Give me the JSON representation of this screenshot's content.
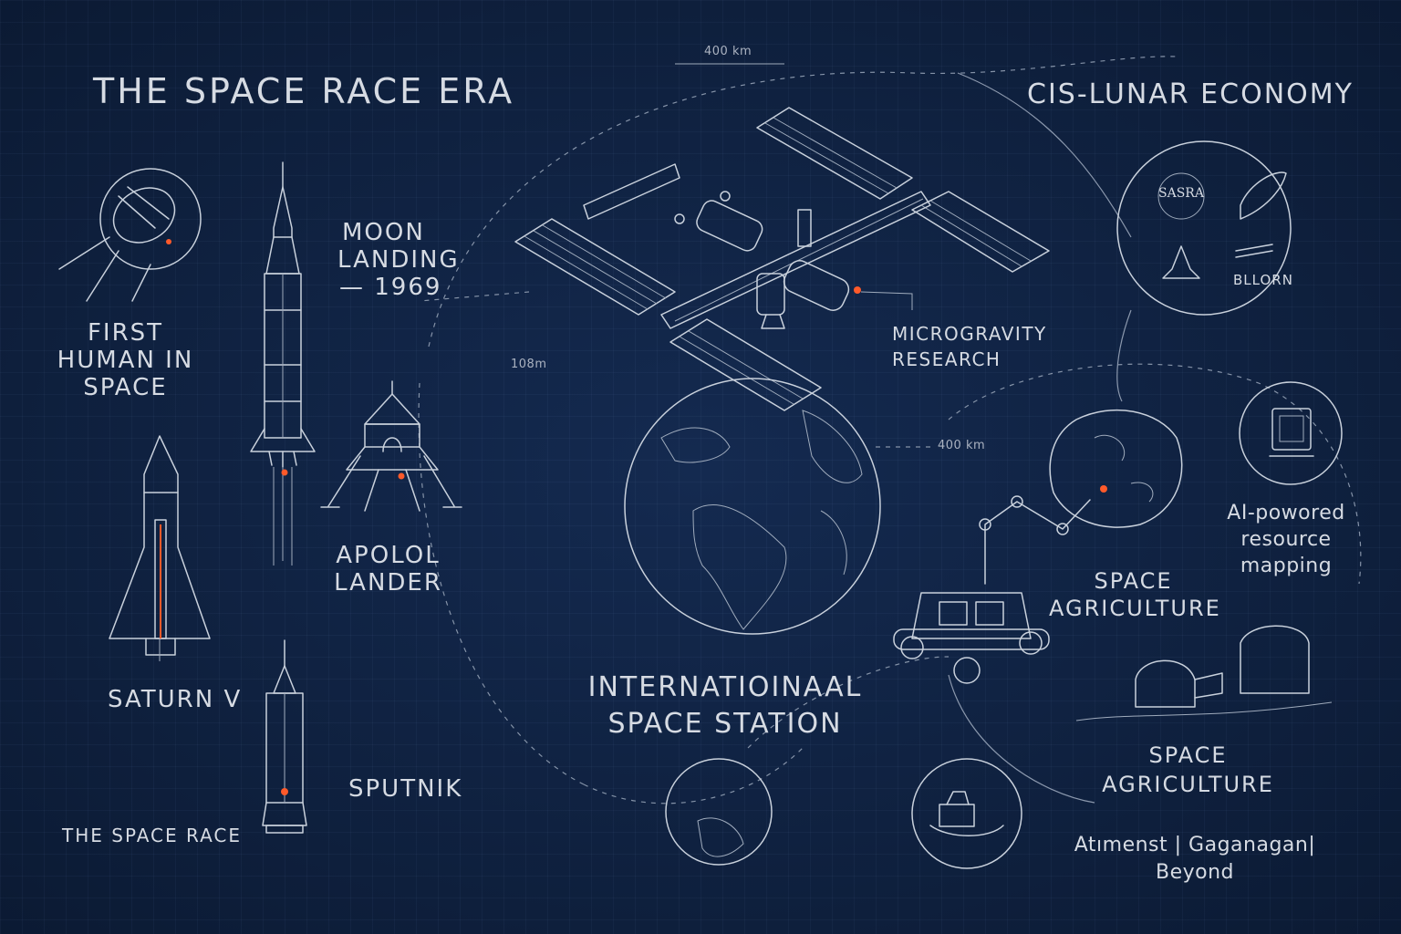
{
  "left": {
    "title": "THE SPACE RACE ERA",
    "first_human": [
      "FIRST",
      "HUMAN IN",
      "SPACE"
    ],
    "moon_landing": [
      "MOON",
      "LANDING",
      "— 1969"
    ],
    "apollo": [
      "APOLOL",
      "LANDER"
    ],
    "saturn": "SATURN V",
    "sputnik": "SPUTNIK",
    "footer": "THE SPACE RACE"
  },
  "center": {
    "dim_top": "400 km",
    "dim_left": "108m",
    "iss": [
      "INTERNATIOINAAL",
      "SPACE STATION"
    ],
    "micro": [
      "MICROGRAVITY",
      "RESEARCH"
    ]
  },
  "right": {
    "title": "CIS-LUNAR ECONOMY",
    "dim_right": "400 km",
    "logos": [
      "SASRA",
      "BLLORN"
    ],
    "ai": [
      "AI-powored",
      "resource",
      "mapping"
    ],
    "agri1": [
      "SPACE",
      "AGRICULTURE"
    ],
    "agri2": [
      "SPACE",
      "AGRICULTURE"
    ],
    "footer": [
      "Atımenst  |  Gaganagan|",
      "Beyond"
    ]
  },
  "colors": {
    "background": "#0f2140",
    "sketch": "#c9d1dc",
    "accent_glow": "#ff5a2a"
  },
  "icons": [
    "sputnik-satellite-icon",
    "saturn-v-rocket-icon",
    "apollo-lander-icon",
    "space-shuttle-icon",
    "small-rocket-icon",
    "iss-icon",
    "earth-globe-icon",
    "asteroid-icon",
    "robotic-rover-icon",
    "habitat-domes-icon",
    "ai-chip-icon",
    "lunar-lander-icon"
  ]
}
